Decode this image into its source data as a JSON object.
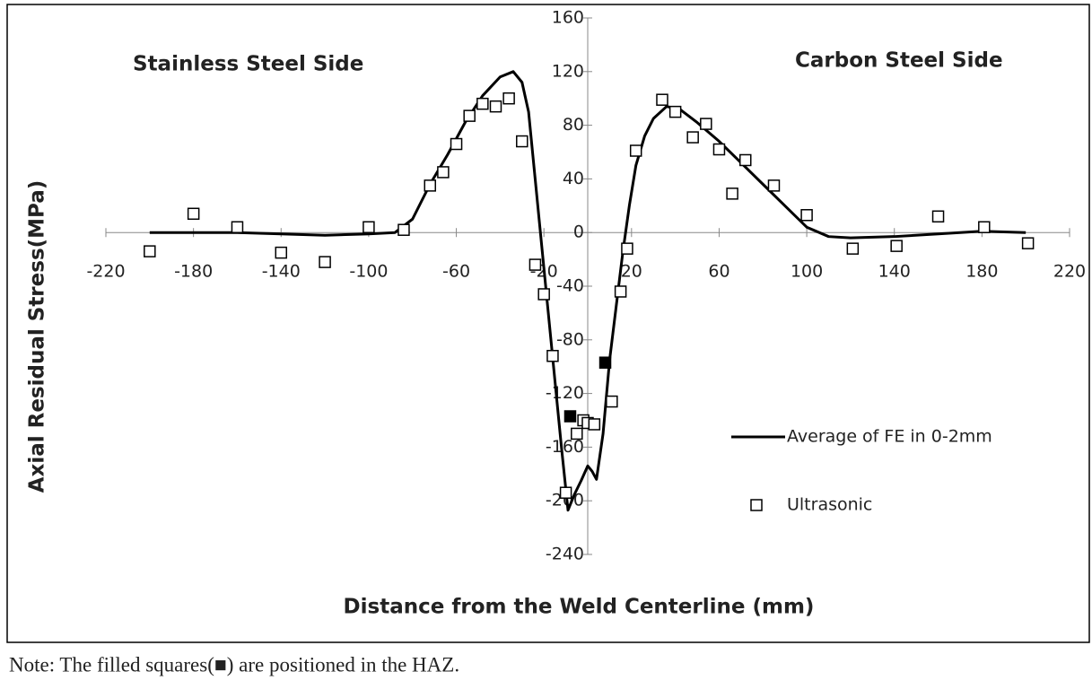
{
  "chart_data": {
    "type": "scatter",
    "xlabel": "Distance from the Weld Centerline (mm)",
    "ylabel": "Axial Residual Stress(MPa)",
    "annotations": [
      "Stainless Steel Side",
      "Carbon Steel Side"
    ],
    "note": "Note: The filled squares(■) are positioned in the HAZ.",
    "xlim": [
      -220,
      220
    ],
    "xticks": [
      -220,
      -180,
      -140,
      -100,
      -60,
      -20,
      20,
      60,
      100,
      140,
      180,
      220
    ],
    "ylim": [
      -240,
      160
    ],
    "yticks": [
      160,
      120,
      80,
      40,
      0,
      -40,
      -80,
      -120,
      -160,
      -200,
      -240
    ],
    "legend": "right",
    "series": [
      {
        "name": "Average of FE in 0-2mm",
        "type": "line",
        "color": "#000000",
        "x": [
          -200,
          -180,
          -160,
          -140,
          -120,
          -100,
          -88,
          -80,
          -72,
          -64,
          -56,
          -48,
          -40,
          -34,
          -30,
          -27,
          -24,
          -21,
          -18,
          -15,
          -12,
          -9,
          -6,
          -3,
          0,
          2,
          4,
          7,
          10,
          13,
          16,
          19,
          22,
          26,
          30,
          36,
          42,
          50,
          60,
          70,
          80,
          90,
          100,
          110,
          120,
          140,
          160,
          180,
          200
        ],
        "values": [
          0,
          0,
          0,
          -1,
          -2,
          -1,
          0,
          10,
          36,
          58,
          82,
          102,
          116,
          120,
          112,
          90,
          40,
          -10,
          -60,
          -110,
          -160,
          -207,
          -195,
          -185,
          -174,
          -178,
          -184,
          -150,
          -95,
          -55,
          -15,
          20,
          50,
          72,
          85,
          94,
          92,
          82,
          68,
          52,
          36,
          20,
          4,
          -3,
          -4,
          -3,
          -1,
          1,
          0
        ]
      },
      {
        "name": "Ultrasonic",
        "type": "scatter",
        "color": "#000000",
        "marker_fill": "#ffffff",
        "x": [
          -200,
          -180,
          -160,
          -140,
          -120,
          -100,
          -84,
          -72,
          -66,
          -60,
          -54,
          -48,
          -42,
          -36,
          -30,
          -24,
          -20,
          -16,
          -10,
          -5,
          -2,
          0,
          3,
          11,
          15,
          18,
          22,
          34,
          40,
          48,
          54,
          60,
          66,
          72,
          85,
          100,
          121,
          141,
          160,
          181,
          201
        ],
        "values": [
          -14,
          14,
          4,
          -15,
          -22,
          4,
          2,
          35,
          45,
          66,
          87,
          96,
          94,
          100,
          68,
          -24,
          -46,
          -92,
          -194,
          -150,
          -140,
          -142,
          -143,
          -126,
          -44,
          -12,
          61,
          99,
          90,
          71,
          81,
          62,
          29,
          54,
          35,
          13,
          -12,
          -10,
          12,
          4,
          -8
        ]
      },
      {
        "type": "scatter",
        "color": "#000000",
        "marker_fill": "#000000",
        "x": [
          -8,
          8
        ],
        "values": [
          -137,
          -97
        ]
      }
    ]
  }
}
